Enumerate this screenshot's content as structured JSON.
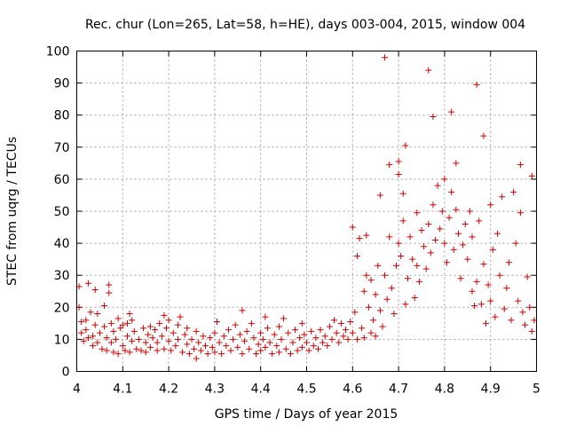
{
  "chart_data": {
    "type": "scatter",
    "title": "Rec. chur (Lon=265, Lat=58, h=HE), days 003-004, 2015, window 004",
    "xlabel": "GPS time / Days of year 2015",
    "ylabel": "STEC from uqrg / TECUs",
    "xlim": [
      4,
      5
    ],
    "ylim": [
      0,
      100
    ],
    "xticks": [
      "4",
      "4.1",
      "4.2",
      "4.3",
      "4.4",
      "4.5",
      "4.6",
      "4.7",
      "4.8",
      "4.9",
      "5"
    ],
    "yticks": [
      "0",
      "10",
      "20",
      "30",
      "40",
      "50",
      "60",
      "70",
      "80",
      "90",
      "100"
    ],
    "grid": true,
    "marker": "plus",
    "color": "#cc0000",
    "series": [
      {
        "points": [
          [
            4.005,
            26.5
          ],
          [
            4.005,
            20
          ],
          [
            4.01,
            15.5
          ],
          [
            4.01,
            12
          ],
          [
            4.015,
            9.5
          ],
          [
            4.02,
            16
          ],
          [
            4.02,
            13
          ],
          [
            4.025,
            10.5
          ],
          [
            4.025,
            27.5
          ],
          [
            4.03,
            18.5
          ],
          [
            4.035,
            11
          ],
          [
            4.035,
            8
          ],
          [
            4.04,
            25.5
          ],
          [
            4.04,
            14.5
          ],
          [
            4.045,
            18
          ],
          [
            4.045,
            9
          ],
          [
            4.05,
            12
          ],
          [
            4.055,
            7
          ],
          [
            4.06,
            20.5
          ],
          [
            4.06,
            14
          ],
          [
            4.065,
            10.5
          ],
          [
            4.065,
            6.5
          ],
          [
            4.07,
            27
          ],
          [
            4.07,
            24.5
          ],
          [
            4.075,
            15
          ],
          [
            4.075,
            9
          ],
          [
            4.08,
            12.5
          ],
          [
            4.08,
            6
          ],
          [
            4.085,
            10
          ],
          [
            4.09,
            16.5
          ],
          [
            4.09,
            5.5
          ],
          [
            4.095,
            13.5
          ],
          [
            4.1,
            8
          ],
          [
            4.1,
            14.5
          ],
          [
            4.105,
            6.5
          ],
          [
            4.11,
            15
          ],
          [
            4.11,
            11
          ],
          [
            4.115,
            18
          ],
          [
            4.115,
            6
          ],
          [
            4.12,
            9.5
          ],
          [
            4.12,
            16
          ],
          [
            4.125,
            12.5
          ],
          [
            4.13,
            7
          ],
          [
            4.135,
            10
          ],
          [
            4.14,
            6.5
          ],
          [
            4.145,
            13.5
          ],
          [
            4.15,
            9
          ],
          [
            4.15,
            6
          ],
          [
            4.155,
            11.5
          ],
          [
            4.16,
            14
          ],
          [
            4.16,
            7.5
          ],
          [
            4.165,
            10.5
          ],
          [
            4.17,
            13
          ],
          [
            4.175,
            6.5
          ],
          [
            4.175,
            9
          ],
          [
            4.18,
            15
          ],
          [
            4.185,
            11
          ],
          [
            4.19,
            17.5
          ],
          [
            4.19,
            7
          ],
          [
            4.195,
            13.5
          ],
          [
            4.2,
            9.5
          ],
          [
            4.2,
            16
          ],
          [
            4.205,
            6.5
          ],
          [
            4.21,
            12
          ],
          [
            4.215,
            8
          ],
          [
            4.22,
            14.5
          ],
          [
            4.22,
            10
          ],
          [
            4.225,
            17
          ],
          [
            4.23,
            6
          ],
          [
            4.235,
            11.5
          ],
          [
            4.24,
            8.5
          ],
          [
            4.24,
            13.5
          ],
          [
            4.245,
            5.5
          ],
          [
            4.25,
            10
          ],
          [
            4.255,
            7
          ],
          [
            4.26,
            12.5
          ],
          [
            4.26,
            4
          ],
          [
            4.265,
            9
          ],
          [
            4.27,
            6.5
          ],
          [
            4.275,
            11
          ],
          [
            4.28,
            8
          ],
          [
            4.285,
            5.5
          ],
          [
            4.29,
            10.5
          ],
          [
            4.295,
            7.5
          ],
          [
            4.3,
            12
          ],
          [
            4.3,
            6
          ],
          [
            4.305,
            15.5
          ],
          [
            4.31,
            9
          ],
          [
            4.315,
            5.5
          ],
          [
            4.32,
            11
          ],
          [
            4.325,
            8
          ],
          [
            4.33,
            13
          ],
          [
            4.335,
            6.5
          ],
          [
            4.34,
            10
          ],
          [
            4.345,
            14.5
          ],
          [
            4.35,
            7.5
          ],
          [
            4.355,
            11.5
          ],
          [
            4.36,
            19
          ],
          [
            4.36,
            5.5
          ],
          [
            4.365,
            9.5
          ],
          [
            4.37,
            12.5
          ],
          [
            4.375,
            7
          ],
          [
            4.38,
            15
          ],
          [
            4.385,
            10.5
          ],
          [
            4.39,
            5.5
          ],
          [
            4.395,
            8.5
          ],
          [
            4.4,
            12
          ],
          [
            4.4,
            6.5
          ],
          [
            4.405,
            10
          ],
          [
            4.41,
            17
          ],
          [
            4.41,
            7.5
          ],
          [
            4.415,
            13.5
          ],
          [
            4.42,
            9
          ],
          [
            4.425,
            5.5
          ],
          [
            4.43,
            11.5
          ],
          [
            4.435,
            8
          ],
          [
            4.44,
            14
          ],
          [
            4.44,
            6
          ],
          [
            4.445,
            10
          ],
          [
            4.45,
            16.5
          ],
          [
            4.455,
            7
          ],
          [
            4.46,
            12
          ],
          [
            4.465,
            5.5
          ],
          [
            4.47,
            9
          ],
          [
            4.475,
            13
          ],
          [
            4.48,
            6.5
          ],
          [
            4.485,
            10.5
          ],
          [
            4.49,
            15
          ],
          [
            4.49,
            7.5
          ],
          [
            4.495,
            11.5
          ],
          [
            4.5,
            9
          ],
          [
            4.505,
            6.5
          ],
          [
            4.51,
            12.5
          ],
          [
            4.515,
            8
          ],
          [
            4.52,
            10.5
          ],
          [
            4.525,
            7
          ],
          [
            4.53,
            13
          ],
          [
            4.535,
            9
          ],
          [
            4.54,
            11
          ],
          [
            4.545,
            8
          ],
          [
            4.55,
            14
          ],
          [
            4.555,
            10
          ],
          [
            4.56,
            16
          ],
          [
            4.565,
            12
          ],
          [
            4.57,
            9
          ],
          [
            4.575,
            15
          ],
          [
            4.58,
            11
          ],
          [
            4.585,
            13
          ],
          [
            4.59,
            10
          ],
          [
            4.595,
            15.5
          ],
          [
            4.6,
            45
          ],
          [
            4.6,
            12
          ],
          [
            4.605,
            18.5
          ],
          [
            4.61,
            36
          ],
          [
            4.61,
            10
          ],
          [
            4.615,
            41.5
          ],
          [
            4.62,
            13.5
          ],
          [
            4.625,
            25
          ],
          [
            4.625,
            10.5
          ],
          [
            4.63,
            42.5
          ],
          [
            4.63,
            30
          ],
          [
            4.635,
            20
          ],
          [
            4.64,
            28.5
          ],
          [
            4.64,
            12
          ],
          [
            4.645,
            16
          ],
          [
            4.65,
            24
          ],
          [
            4.65,
            11
          ],
          [
            4.655,
            33
          ],
          [
            4.66,
            55
          ],
          [
            4.66,
            19
          ],
          [
            4.665,
            14
          ],
          [
            4.67,
            98
          ],
          [
            4.67,
            30
          ],
          [
            4.675,
            22.5
          ],
          [
            4.68,
            42
          ],
          [
            4.68,
            64.5
          ],
          [
            4.685,
            26
          ],
          [
            4.69,
            18
          ],
          [
            4.695,
            33
          ],
          [
            4.7,
            65.5
          ],
          [
            4.7,
            61.5
          ],
          [
            4.7,
            40
          ],
          [
            4.705,
            36
          ],
          [
            4.71,
            55.5
          ],
          [
            4.71,
            47
          ],
          [
            4.715,
            70.5
          ],
          [
            4.715,
            21
          ],
          [
            4.72,
            29
          ],
          [
            4.725,
            42
          ],
          [
            4.73,
            35
          ],
          [
            4.735,
            23
          ],
          [
            4.74,
            49.5
          ],
          [
            4.74,
            33
          ],
          [
            4.745,
            28
          ],
          [
            4.75,
            44
          ],
          [
            4.755,
            39
          ],
          [
            4.76,
            32
          ],
          [
            4.765,
            94
          ],
          [
            4.765,
            46
          ],
          [
            4.77,
            37
          ],
          [
            4.775,
            52
          ],
          [
            4.775,
            79.5
          ],
          [
            4.78,
            41
          ],
          [
            4.785,
            58
          ],
          [
            4.79,
            44.5
          ],
          [
            4.795,
            50
          ],
          [
            4.8,
            60
          ],
          [
            4.8,
            40
          ],
          [
            4.805,
            34
          ],
          [
            4.81,
            48
          ],
          [
            4.815,
            81
          ],
          [
            4.815,
            56
          ],
          [
            4.82,
            38
          ],
          [
            4.825,
            65
          ],
          [
            4.825,
            50.5
          ],
          [
            4.83,
            43
          ],
          [
            4.835,
            29
          ],
          [
            4.84,
            39.5
          ],
          [
            4.845,
            46
          ],
          [
            4.85,
            35
          ],
          [
            4.855,
            50
          ],
          [
            4.86,
            25
          ],
          [
            4.86,
            42
          ],
          [
            4.865,
            20.5
          ],
          [
            4.87,
            89.5
          ],
          [
            4.87,
            28
          ],
          [
            4.875,
            47
          ],
          [
            4.88,
            21
          ],
          [
            4.885,
            73.5
          ],
          [
            4.885,
            33.5
          ],
          [
            4.89,
            15
          ],
          [
            4.895,
            27
          ],
          [
            4.9,
            52
          ],
          [
            4.9,
            22
          ],
          [
            4.905,
            38
          ],
          [
            4.91,
            17
          ],
          [
            4.915,
            43
          ],
          [
            4.92,
            30
          ],
          [
            4.925,
            54.5
          ],
          [
            4.93,
            19.5
          ],
          [
            4.935,
            26
          ],
          [
            4.94,
            34
          ],
          [
            4.945,
            16
          ],
          [
            4.95,
            56
          ],
          [
            4.955,
            40
          ],
          [
            4.96,
            22
          ],
          [
            4.965,
            64.5
          ],
          [
            4.965,
            49.5
          ],
          [
            4.97,
            18.5
          ],
          [
            4.975,
            14.5
          ],
          [
            4.98,
            29.5
          ],
          [
            4.985,
            20
          ],
          [
            4.99,
            61
          ],
          [
            4.99,
            12.5
          ],
          [
            4.995,
            16
          ]
        ]
      }
    ]
  }
}
